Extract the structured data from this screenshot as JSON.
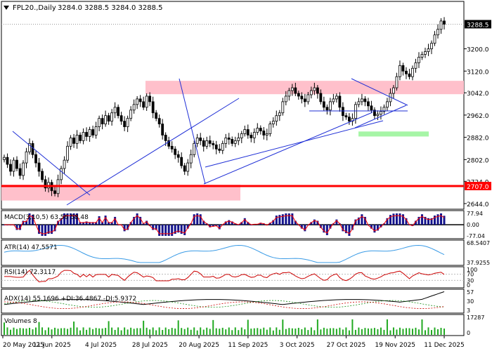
{
  "header": {
    "symbol": "FPL20.,Daily",
    "ohlc": "3284.0 3288.5 3284.0 3288.5"
  },
  "chart_data": {
    "type": "candlestick",
    "price_axis": {
      "ticks": [
        "3288.5",
        "3200.0",
        "3120.0",
        "3042.0",
        "2962.0",
        "2882.0",
        "2802.0",
        "2724.0",
        "2707.0",
        "2644.0"
      ],
      "ylim": [
        2644,
        3330
      ]
    },
    "last_price": "3288.5",
    "support_level": "2707.0",
    "x_labels": [
      "20 May 2025",
      "11 Jun 2025",
      "4 Jul 2025",
      "28 Jul 2025",
      "20 Aug 2025",
      "11 Sep 2025",
      "3 Oct 2025",
      "27 Oct 2025",
      "19 Nov 2025",
      "11 Dec 2025"
    ],
    "series_close": [
      2810,
      2785,
      2760,
      2800,
      2770,
      2745,
      2790,
      2830,
      2860,
      2820,
      2790,
      2760,
      2730,
      2700,
      2720,
      2690,
      2680,
      2730,
      2770,
      2800,
      2850,
      2880,
      2860,
      2890,
      2870,
      2900,
      2885,
      2910,
      2890,
      2920,
      2950,
      2930,
      2960,
      2940,
      2970,
      2990,
      2960,
      2940,
      2920,
      2950,
      2980,
      3000,
      3020,
      3010,
      2990,
      3030,
      3010,
      2970,
      2950,
      2930,
      2890,
      2870,
      2850,
      2840,
      2820,
      2810,
      2780,
      2760,
      2790,
      2820,
      2860,
      2880,
      2870,
      2850,
      2870,
      2860,
      2855,
      2840,
      2835,
      2860,
      2880,
      2875,
      2860,
      2870,
      2880,
      2895,
      2910,
      2890,
      2880,
      2900,
      2915,
      2905,
      2890,
      2895,
      2930,
      2940,
      2960,
      2970,
      3010,
      3030,
      3050,
      3060,
      3040,
      3030,
      3020,
      3010,
      3035,
      3050,
      3060,
      3040,
      3010,
      2990,
      2980,
      3010,
      3020,
      3030,
      2990,
      2960,
      2955,
      2940,
      2950,
      3000,
      3010,
      3020,
      3010,
      2995,
      2980,
      2960,
      2965,
      2975,
      2990,
      3010,
      3040,
      3060,
      3100,
      3140,
      3120,
      3110,
      3100,
      3130,
      3150,
      3170,
      3180,
      3190,
      3200,
      3220,
      3250,
      3270,
      3300,
      3288.5
    ],
    "annotations": {
      "resistance_zone": [
        3037,
        3085
      ],
      "lower_zone": [
        2655,
        2712
      ],
      "green_zone": [
        2885,
        2903
      ],
      "horizontal_level": 2707
    },
    "indicators": {
      "macd": {
        "label": "MACD(3,10,5) 63.56 58.48",
        "ticks": [
          "77.94",
          "0.00",
          "-77.04"
        ],
        "ylim": [
          -77.04,
          77.94
        ]
      },
      "atr": {
        "label": "ATR(14) 47.5571",
        "ticks": [
          "68.5407",
          "37.9255"
        ],
        "ylim": [
          37.9255,
          68.5407
        ]
      },
      "rsi": {
        "label": "RSI(14) 72.3117",
        "ticks": [
          "100",
          "70",
          "30",
          "0"
        ],
        "ylim": [
          0,
          100
        ]
      },
      "adx": {
        "label": "ADX(14) 55.1696 +DI:36.4867 -DI:5.9372",
        "ticks": [
          "57",
          "30",
          "3"
        ],
        "ylim": [
          3,
          57
        ]
      },
      "volume": {
        "label": "Volumes 8",
        "ticks": [
          "17287",
          "0"
        ],
        "ylim": [
          0,
          17287
        ]
      }
    },
    "colors": {
      "up_candle": "#ffffff",
      "down_candle": "#000000",
      "trendline": "#1f2fd6",
      "horizontal_level": "#ff0000",
      "resistance_zone": "#ffc0cb",
      "green_zone": "#a6f5a6",
      "macd_bars": "#14148c",
      "macd_signal": "#ff0000",
      "atr_line": "#3a9be6",
      "rsi_line": "#cc0000",
      "adx_line": "#000000",
      "volume_bars": "#22aa22"
    }
  }
}
